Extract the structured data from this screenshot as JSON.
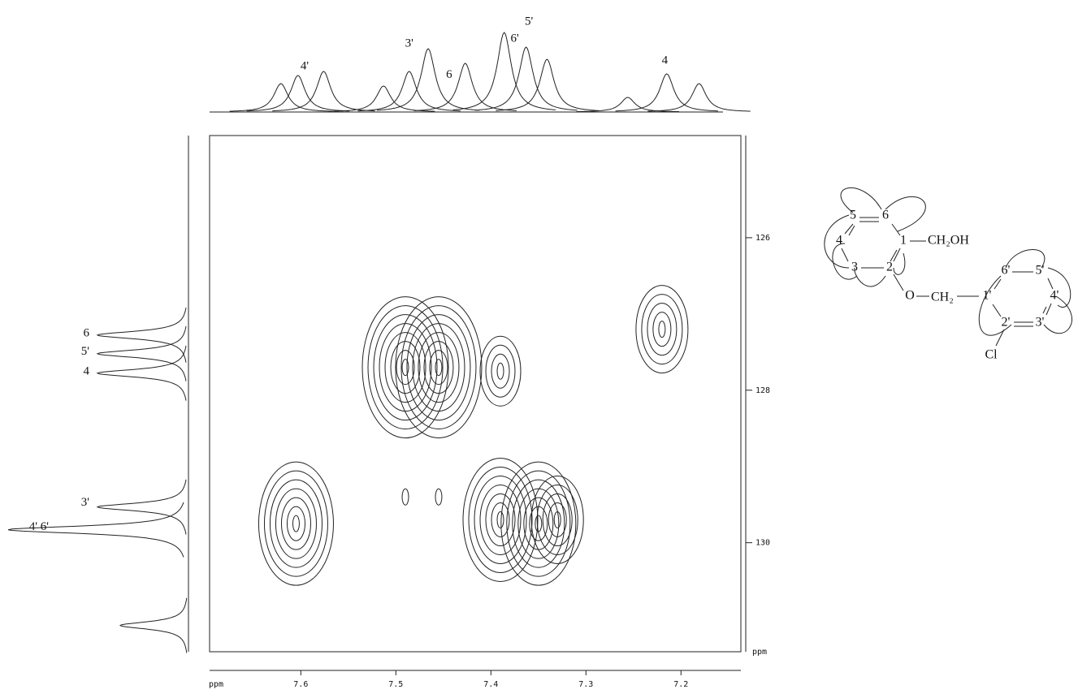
{
  "chart_data": {
    "type": "contour",
    "xlim": [
      7.696,
      7.137
    ],
    "xticks": [
      7.6,
      7.5,
      7.4,
      7.3,
      7.2
    ],
    "x_unit": "ppm",
    "ylim": [
      124.66,
      131.43
    ],
    "yticks": [
      126,
      128,
      130
    ],
    "y_unit": "ppm",
    "peaks": {
      "x": [
        7.49,
        7.455,
        7.39,
        7.22,
        7.605,
        7.49,
        7.455,
        7.39,
        7.35,
        7.33
      ],
      "y": [
        127.7,
        127.7,
        127.75,
        127.2,
        129.75,
        129.4,
        129.4,
        129.7,
        129.75,
        129.7
      ],
      "intensity": [
        8,
        8,
        4,
        5,
        7,
        1,
        1,
        7,
        7,
        5
      ]
    },
    "top_spectrum": {
      "x": [
        7.621,
        7.603,
        7.576,
        7.513,
        7.486,
        7.466,
        7.427,
        7.386,
        7.363,
        7.341,
        7.256,
        7.215,
        7.181
      ],
      "values": [
        35,
        45,
        50,
        32,
        50,
        78,
        60,
        98,
        80,
        65,
        18,
        47,
        35
      ]
    },
    "top_labels": {
      "text": [
        "4'",
        "3'",
        "6",
        "6'",
        "5'",
        "4"
      ],
      "x": [
        7.596,
        7.486,
        7.444,
        7.375,
        7.36,
        7.217
      ]
    },
    "left_spectrum": {
      "y": [
        127.277,
        127.521,
        127.777,
        129.532,
        129.83,
        131.085
      ],
      "values": [
        112,
        112,
        112,
        112,
        222,
        84
      ]
    },
    "left_labels": {
      "text": [
        "6",
        "5'",
        "4",
        "3'",
        "4' 6'"
      ],
      "y": [
        127.277,
        127.521,
        127.777,
        129.5,
        129.82
      ]
    }
  },
  "structure": {
    "ring1": [
      "5",
      "6",
      "1",
      "2",
      "3",
      "4"
    ],
    "substituent": "CH₂OH",
    "linker_o": "O",
    "linker_c": "CH₂",
    "ring2": [
      "1'",
      "6'",
      "5'",
      "4'",
      "3'",
      "2'"
    ],
    "chloro": "Cl"
  }
}
